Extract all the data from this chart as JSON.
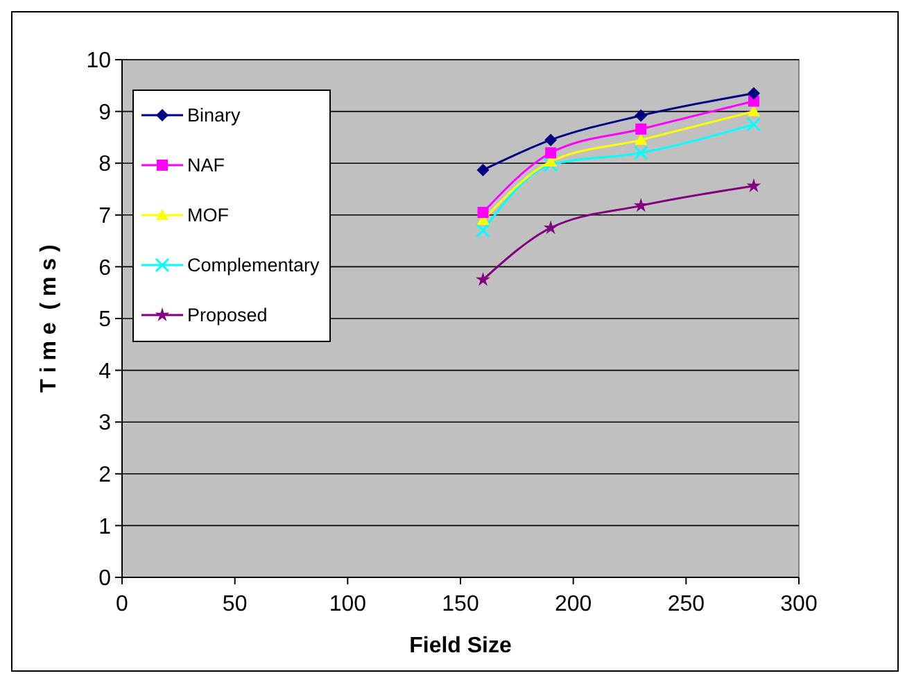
{
  "chart_data": {
    "type": "line",
    "xlabel": "Field Size",
    "ylabel": "T i m e  ( m s )",
    "x": [
      160,
      190,
      230,
      280
    ],
    "series": [
      {
        "name": "Binary",
        "color": "#000080",
        "marker": "diamond",
        "values": [
          7.87,
          8.45,
          8.92,
          9.35
        ]
      },
      {
        "name": "NAF",
        "color": "#ff00ff",
        "marker": "square",
        "values": [
          7.05,
          8.2,
          8.66,
          9.2
        ]
      },
      {
        "name": "MOF",
        "color": "#ffff00",
        "marker": "triangle",
        "values": [
          6.9,
          8.03,
          8.45,
          9.0
        ]
      },
      {
        "name": "Complementary",
        "color": "#00ffff",
        "marker": "cross",
        "values": [
          6.7,
          7.97,
          8.2,
          8.75
        ]
      },
      {
        "name": "Proposed",
        "color": "#800080",
        "marker": "star",
        "values": [
          5.75,
          6.75,
          7.18,
          7.56
        ]
      }
    ],
    "xlim": [
      0,
      300
    ],
    "xticks": [
      0,
      50,
      100,
      150,
      200,
      250,
      300
    ],
    "ylim": [
      0,
      10
    ],
    "yticks": [
      0,
      1,
      2,
      3,
      4,
      5,
      6,
      7,
      8,
      9,
      10
    ],
    "grid": "y",
    "legend": "top left"
  }
}
